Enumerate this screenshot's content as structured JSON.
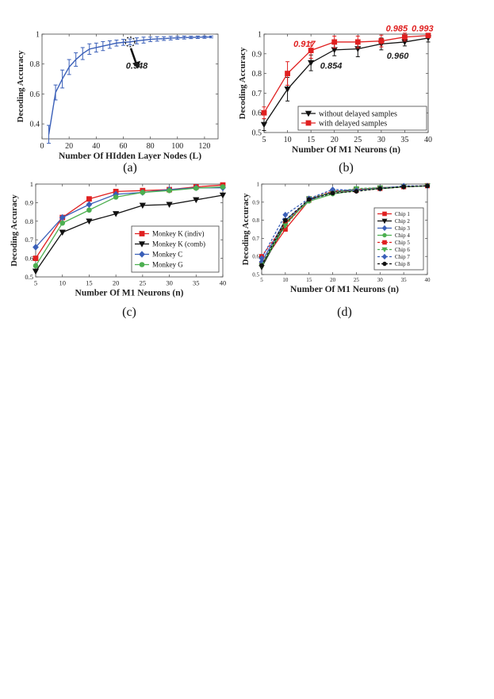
{
  "chart_data": [
    {
      "id": "a",
      "type": "line",
      "caption": "(a)",
      "xlabel": "Number Of HIdden Layer Nodes (L)",
      "ylabel": "Decoding Accuracy",
      "xlim": [
        0,
        130
      ],
      "ylim": [
        0.3,
        1.0
      ],
      "xticks": [
        0,
        20,
        40,
        60,
        80,
        100,
        120
      ],
      "yticks": [
        0.4,
        0.6,
        0.8,
        1.0
      ],
      "ytick_labels": [
        "0.4",
        "0.6",
        "0.8",
        "1"
      ],
      "grid": false,
      "series": [
        {
          "color": "#3a5fb8",
          "marker": "none",
          "x": [
            5,
            10,
            15,
            20,
            25,
            30,
            35,
            40,
            45,
            50,
            55,
            60,
            65,
            70,
            75,
            80,
            85,
            90,
            95,
            100,
            105,
            110,
            115,
            120,
            125
          ],
          "y": [
            0.33,
            0.61,
            0.7,
            0.78,
            0.83,
            0.87,
            0.9,
            0.91,
            0.92,
            0.93,
            0.94,
            0.945,
            0.948,
            0.955,
            0.96,
            0.965,
            0.968,
            0.97,
            0.973,
            0.975,
            0.977,
            0.978,
            0.979,
            0.98,
            0.981
          ],
          "err": [
            0.06,
            0.05,
            0.06,
            0.05,
            0.045,
            0.04,
            0.035,
            0.03,
            0.03,
            0.025,
            0.02,
            0.02,
            0.02,
            0.02,
            0.02,
            0.015,
            0.015,
            0.012,
            0.012,
            0.01,
            0.01,
            0.008,
            0.008,
            0.008,
            0.006
          ]
        }
      ],
      "highlight": {
        "x": 65,
        "y": 0.948
      },
      "annotations": [
        {
          "text": "0.948",
          "x": 70,
          "y": 0.77,
          "color": "#222222"
        }
      ]
    },
    {
      "id": "b",
      "type": "line",
      "caption": "(b)",
      "xlabel": "Number Of M1 Neurons (n)",
      "ylabel": "Decoding Accuracy",
      "xlim": [
        5,
        40
      ],
      "ylim": [
        0.5,
        1.0
      ],
      "xticks": [
        5,
        10,
        15,
        20,
        25,
        30,
        35,
        40
      ],
      "yticks": [
        0.5,
        0.6,
        0.7,
        0.8,
        0.9,
        1.0
      ],
      "ytick_labels": [
        "0.5",
        "0.6",
        "0.7",
        "0.8",
        "0.9",
        "1"
      ],
      "grid": false,
      "legend": "bottom-right",
      "x": [
        5,
        10,
        15,
        20,
        25,
        30,
        35,
        40
      ],
      "series": [
        {
          "name": "without delayed samples",
          "color": "#111111",
          "marker": "triangle-down",
          "y": [
            0.54,
            0.72,
            0.854,
            0.92,
            0.925,
            0.95,
            0.96,
            0.98
          ],
          "err": [
            0.03,
            0.06,
            0.04,
            0.03,
            0.04,
            0.03,
            0.02,
            0.02
          ]
        },
        {
          "name": "with delayed samples",
          "color": "#e02020",
          "marker": "square",
          "y": [
            0.6,
            0.8,
            0.917,
            0.96,
            0.96,
            0.965,
            0.985,
            0.993
          ],
          "err": [
            0.03,
            0.06,
            0.04,
            0.03,
            0.03,
            0.03,
            0.02,
            0.01
          ]
        }
      ],
      "annotations": [
        {
          "text": "0.917",
          "x": 13.6,
          "y": 0.935,
          "color": "#e02020"
        },
        {
          "text": "0.854",
          "x": 19.3,
          "y": 0.825,
          "color": "#222222"
        },
        {
          "text": "0.960",
          "x": 33.5,
          "y": 0.875,
          "color": "#222222"
        },
        {
          "text": "0.985",
          "x": 33.3,
          "y": 1.014,
          "color": "#e02020"
        },
        {
          "text": "0.993",
          "x": 38.8,
          "y": 1.014,
          "color": "#e02020"
        }
      ]
    },
    {
      "id": "c",
      "type": "line",
      "caption": "(c)",
      "xlabel": "Number Of M1 Neurons (n)",
      "ylabel": "Decoding Accuracy",
      "xlim": [
        5,
        40
      ],
      "ylim": [
        0.5,
        1.0
      ],
      "xticks": [
        5,
        10,
        15,
        20,
        25,
        30,
        35,
        40
      ],
      "yticks": [
        0.5,
        0.6,
        0.7,
        0.8,
        0.9,
        1.0
      ],
      "ytick_labels": [
        "0.5",
        "0.6",
        "0.7",
        "0.8",
        "0.9",
        "1"
      ],
      "grid": false,
      "legend": "right",
      "x": [
        5,
        10,
        15,
        20,
        25,
        30,
        35,
        40
      ],
      "series": [
        {
          "name": "Monkey K (indiv)",
          "color": "#e02020",
          "marker": "square",
          "y": [
            0.6,
            0.82,
            0.92,
            0.96,
            0.965,
            0.97,
            0.985,
            0.995
          ]
        },
        {
          "name": "Monkey K (comb)",
          "color": "#111111",
          "marker": "triangle-down",
          "y": [
            0.53,
            0.74,
            0.8,
            0.84,
            0.885,
            0.89,
            0.915,
            0.94
          ]
        },
        {
          "name": "Monkey C",
          "color": "#3a5fb8",
          "marker": "diamond",
          "y": [
            0.66,
            0.82,
            0.89,
            0.945,
            0.955,
            0.97,
            0.98,
            0.98
          ]
        },
        {
          "name": "Monkey G",
          "color": "#4caf50",
          "marker": "circle",
          "y": [
            0.56,
            0.79,
            0.86,
            0.93,
            0.955,
            0.965,
            0.978,
            0.985
          ]
        }
      ]
    },
    {
      "id": "d",
      "type": "line",
      "caption": "(d)",
      "xlabel": "Number Of M1 Neurons (n)",
      "ylabel": "Decoding Accuracy",
      "xlim": [
        5,
        40
      ],
      "ylim": [
        0.5,
        1.0
      ],
      "xticks": [
        5,
        10,
        15,
        20,
        25,
        30,
        35,
        40
      ],
      "yticks": [
        0.5,
        0.6,
        0.7,
        0.8,
        0.9,
        1.0
      ],
      "ytick_labels": [
        "0.5",
        "0.6",
        "0.7",
        "0.8",
        "0.9",
        "1"
      ],
      "grid": false,
      "legend": "right",
      "x": [
        5,
        10,
        15,
        20,
        25,
        30,
        35,
        40
      ],
      "series": [
        {
          "name": "Chip 1",
          "color": "#e02020",
          "marker": "square",
          "dash": false,
          "y": [
            0.56,
            0.75,
            0.91,
            0.96,
            0.965,
            0.975,
            0.985,
            0.99
          ]
        },
        {
          "name": "Chip 2",
          "color": "#111111",
          "marker": "triangle-down",
          "dash": false,
          "y": [
            0.54,
            0.78,
            0.915,
            0.955,
            0.97,
            0.975,
            0.985,
            0.99
          ]
        },
        {
          "name": "Chip 3",
          "color": "#3a5fb8",
          "marker": "diamond",
          "dash": false,
          "y": [
            0.57,
            0.8,
            0.91,
            0.96,
            0.97,
            0.98,
            0.985,
            0.99
          ]
        },
        {
          "name": "Chip 4",
          "color": "#4caf50",
          "marker": "circle",
          "dash": false,
          "y": [
            0.55,
            0.79,
            0.905,
            0.945,
            0.965,
            0.975,
            0.985,
            0.99
          ]
        },
        {
          "name": "Chip 5",
          "color": "#e02020",
          "marker": "square",
          "dash": true,
          "y": [
            0.6,
            0.78,
            0.92,
            0.96,
            0.97,
            0.98,
            0.985,
            0.992
          ]
        },
        {
          "name": "Chip 6",
          "color": "#4caf50",
          "marker": "triangle-down",
          "dash": true,
          "y": [
            0.55,
            0.77,
            0.92,
            0.955,
            0.975,
            0.98,
            0.985,
            0.99
          ]
        },
        {
          "name": "Chip 7",
          "color": "#3a5fb8",
          "marker": "diamond",
          "dash": true,
          "y": [
            0.59,
            0.83,
            0.92,
            0.97,
            0.965,
            0.975,
            0.99,
            0.99
          ]
        },
        {
          "name": "Chip 8",
          "color": "#111111",
          "marker": "circle",
          "dash": true,
          "y": [
            0.55,
            0.8,
            0.915,
            0.95,
            0.96,
            0.975,
            0.985,
            0.99
          ]
        }
      ]
    }
  ]
}
